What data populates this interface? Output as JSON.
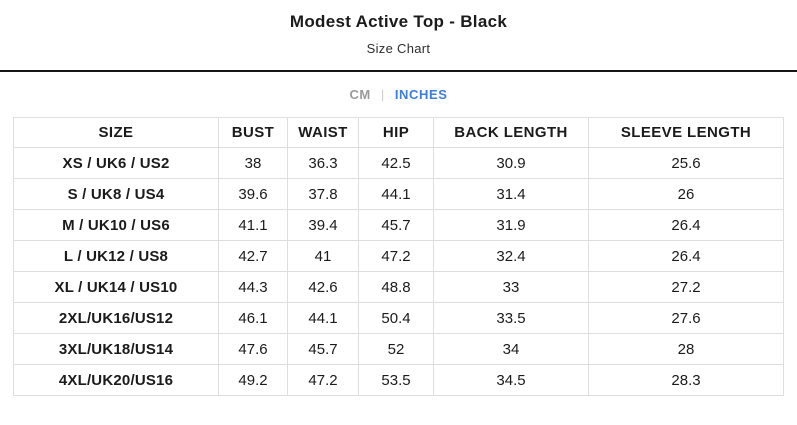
{
  "header": {
    "title": "Modest Active Top - Black",
    "subtitle": "Size Chart"
  },
  "unit_toggle": {
    "cm_label": "CM",
    "separator": "|",
    "inches_label": "INCHES",
    "active_option": "INCHES"
  },
  "colors": {
    "accent_blue": "#3d7edd",
    "inactive_gray": "#9a9a9a",
    "separator_gray": "#cfcfcf",
    "table_border": "#dedede",
    "divider": "#161616",
    "text": "#1b1b1b"
  },
  "table": {
    "columns": [
      "SIZE",
      "BUST",
      "WAIST",
      "HIP",
      "BACK LENGTH",
      "SLEEVE LENGTH"
    ],
    "rows": [
      [
        "XS / UK6 / US2",
        "38",
        "36.3",
        "42.5",
        "30.9",
        "25.6"
      ],
      [
        "S / UK8 / US4",
        "39.6",
        "37.8",
        "44.1",
        "31.4",
        "26"
      ],
      [
        "M / UK10 / US6",
        "41.1",
        "39.4",
        "45.7",
        "31.9",
        "26.4"
      ],
      [
        "L / UK12 / US8",
        "42.7",
        "41",
        "47.2",
        "32.4",
        "26.4"
      ],
      [
        "XL / UK14 / US10",
        "44.3",
        "42.6",
        "48.8",
        "33",
        "27.2"
      ],
      [
        "2XL/UK16/US12",
        "46.1",
        "44.1",
        "50.4",
        "33.5",
        "27.6"
      ],
      [
        "3XL/UK18/US14",
        "47.6",
        "45.7",
        "52",
        "34",
        "28"
      ],
      [
        "4XL/UK20/US16",
        "49.2",
        "47.2",
        "53.5",
        "34.5",
        "28.3"
      ]
    ]
  }
}
